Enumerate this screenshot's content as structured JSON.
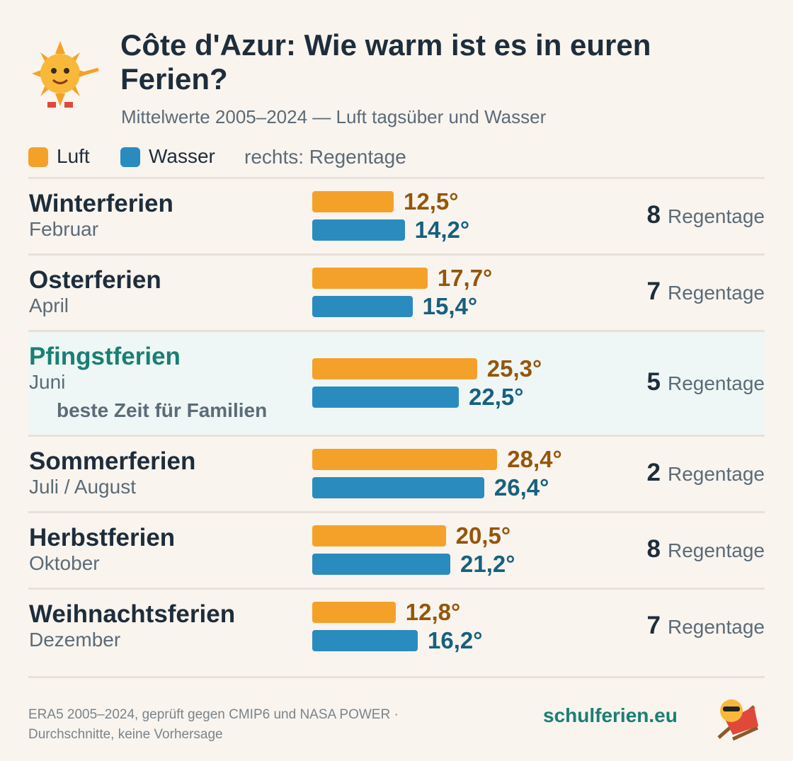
{
  "chart_data": {
    "type": "bar",
    "title": "Côte d'Azur: Wie warm ist es in euren Ferien?",
    "subtitle": "Mittelwerte 2005–2024 — Luft tagsüber und Wasser",
    "legend_note": "rechts: Regentage",
    "categories": [
      "Winterferien",
      "Osterferien",
      "Pfingstferien",
      "Sommerferien",
      "Herbstferien",
      "Weihnachtsferien"
    ],
    "category_sublabels": [
      "Februar",
      "April",
      "Juni",
      "Juli / August",
      "Oktober",
      "Dezember"
    ],
    "series": [
      {
        "name": "Luft",
        "color": "#f4a12a",
        "label_color": "#95560a",
        "values": [
          12.5,
          17.7,
          25.3,
          28.4,
          20.5,
          12.8
        ],
        "value_labels": [
          "12,5°",
          "17,7°",
          "25,3°",
          "28,4°",
          "20,5°",
          "12,8°"
        ]
      },
      {
        "name": "Wasser",
        "color": "#2a8bbf",
        "label_color": "#17607f",
        "values": [
          14.2,
          15.4,
          22.5,
          26.4,
          21.2,
          16.2
        ],
        "value_labels": [
          "14,2°",
          "15,4°",
          "22,5°",
          "26,4°",
          "21,2°",
          "16,2°"
        ]
      }
    ],
    "rain_days": [
      8,
      7,
      5,
      2,
      8,
      7
    ],
    "rain_unit": "Regentage",
    "highlight": {
      "index": 2,
      "note": "beste Zeit für Familien"
    },
    "source_lines": [
      "ERA5 2005–2024, geprüft gegen CMIP6 und NASA POWER ·",
      "Durchschnitte, keine Vorhersage"
    ],
    "brand": "schulferien.eu"
  }
}
